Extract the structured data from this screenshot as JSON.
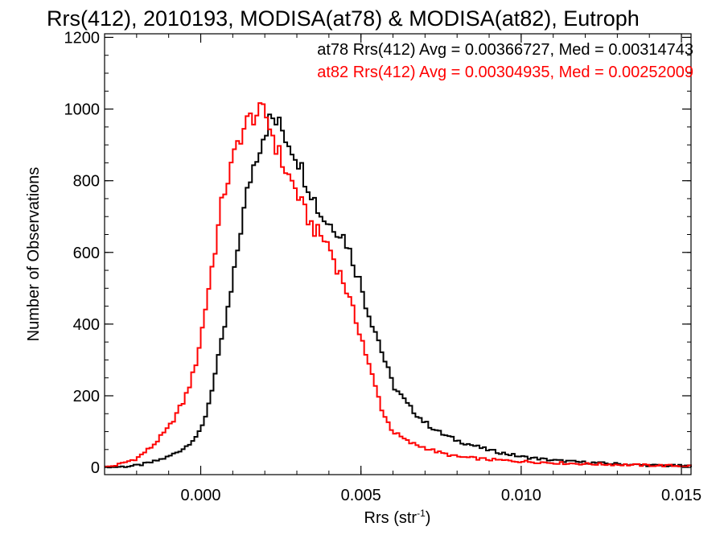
{
  "chart_data": {
    "type": "line",
    "title": "Rrs(412), 2010193, MODISA(at78) & MODISA(at82), Eutroph",
    "xlabel": "Rrs (str",
    "xlabel_sup": "-1",
    "xlabel_close": ")",
    "ylabel": "Number of Observations",
    "xlim": [
      -0.003,
      0.0153
    ],
    "ylim": [
      -20,
      1210
    ],
    "x_ticks": [
      0.0,
      0.005,
      0.01,
      0.015
    ],
    "x_tick_labels": [
      "0.000",
      "0.005",
      "0.010",
      "0.015"
    ],
    "y_ticks": [
      0,
      200,
      400,
      600,
      800,
      1000,
      1200
    ],
    "y_tick_labels": [
      "0",
      "200",
      "400",
      "600",
      "800",
      "1000",
      "1200"
    ],
    "stats": [
      {
        "text": "at78 Rrs(412) Avg = 0.00366727, Med = 0.00314743",
        "color": "#000000"
      },
      {
        "text": "at82 Rrs(412) Avg = 0.00304935, Med = 0.00252009",
        "color": "#ff0000"
      }
    ],
    "series": [
      {
        "color": "#000000",
        "bin_width": 0.0001,
        "x_start": -0.003,
        "points": [
          [
            -0.003,
            0
          ],
          [
            -0.0025,
            2
          ],
          [
            -0.002,
            5
          ],
          [
            -0.0015,
            15
          ],
          [
            -0.001,
            30
          ],
          [
            -0.0005,
            55
          ],
          [
            0.0,
            100
          ],
          [
            0.0002,
            160
          ],
          [
            0.0005,
            280
          ],
          [
            0.0007,
            370
          ],
          [
            0.001,
            510
          ],
          [
            0.0012,
            640
          ],
          [
            0.0015,
            790
          ],
          [
            0.0017,
            860
          ],
          [
            0.002,
            940
          ],
          [
            0.0022,
            975
          ],
          [
            0.0025,
            950
          ],
          [
            0.0027,
            915
          ],
          [
            0.003,
            870
          ],
          [
            0.0032,
            820
          ],
          [
            0.0035,
            760
          ],
          [
            0.0037,
            710
          ],
          [
            0.004,
            680
          ],
          [
            0.0042,
            670
          ],
          [
            0.0045,
            640
          ],
          [
            0.0047,
            590
          ],
          [
            0.005,
            510
          ],
          [
            0.0052,
            440
          ],
          [
            0.0055,
            370
          ],
          [
            0.0057,
            310
          ],
          [
            0.006,
            230
          ],
          [
            0.0065,
            170
          ],
          [
            0.007,
            125
          ],
          [
            0.0075,
            95
          ],
          [
            0.008,
            75
          ],
          [
            0.009,
            48
          ],
          [
            0.01,
            30
          ],
          [
            0.011,
            20
          ],
          [
            0.012,
            14
          ],
          [
            0.013,
            10
          ],
          [
            0.014,
            6
          ],
          [
            0.0153,
            4
          ]
        ]
      },
      {
        "color": "#ff0000",
        "bin_width": 0.0001,
        "x_start": -0.003,
        "points": [
          [
            -0.003,
            0
          ],
          [
            -0.0027,
            5
          ],
          [
            -0.0025,
            10
          ],
          [
            -0.002,
            25
          ],
          [
            -0.0015,
            60
          ],
          [
            -0.001,
            110
          ],
          [
            -0.0005,
            190
          ],
          [
            -0.0002,
            270
          ],
          [
            0.0,
            360
          ],
          [
            0.0003,
            530
          ],
          [
            0.0005,
            640
          ],
          [
            0.0007,
            760
          ],
          [
            0.001,
            850
          ],
          [
            0.0012,
            920
          ],
          [
            0.0015,
            970
          ],
          [
            0.0017,
            985
          ],
          [
            0.002,
            990
          ],
          [
            0.0022,
            940
          ],
          [
            0.0025,
            860
          ],
          [
            0.0027,
            820
          ],
          [
            0.003,
            770
          ],
          [
            0.0032,
            720
          ],
          [
            0.0035,
            670
          ],
          [
            0.0037,
            650
          ],
          [
            0.004,
            620
          ],
          [
            0.0042,
            570
          ],
          [
            0.0045,
            510
          ],
          [
            0.0047,
            450
          ],
          [
            0.005,
            370
          ],
          [
            0.0052,
            300
          ],
          [
            0.0055,
            210
          ],
          [
            0.0057,
            150
          ],
          [
            0.006,
            100
          ],
          [
            0.0065,
            70
          ],
          [
            0.007,
            55
          ],
          [
            0.0075,
            40
          ],
          [
            0.008,
            30
          ],
          [
            0.009,
            22
          ],
          [
            0.01,
            17
          ],
          [
            0.011,
            13
          ],
          [
            0.012,
            10
          ],
          [
            0.013,
            8
          ],
          [
            0.014,
            6
          ],
          [
            0.0153,
            4
          ]
        ]
      }
    ]
  }
}
